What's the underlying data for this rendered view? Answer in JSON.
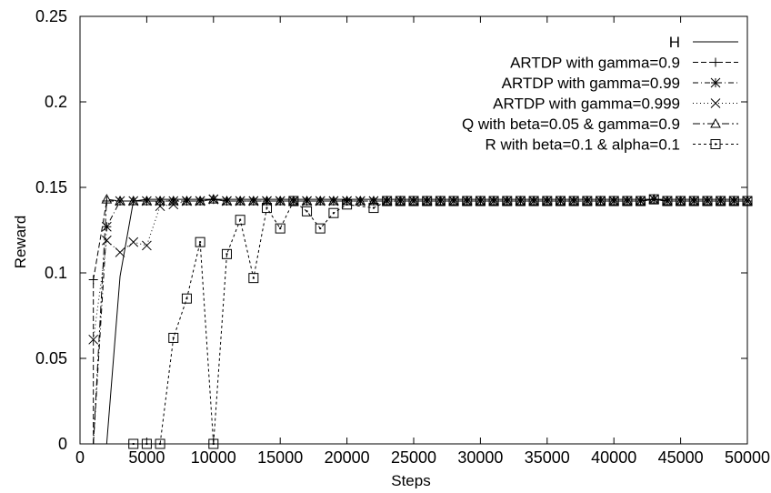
{
  "chart_data": {
    "type": "line",
    "title": "",
    "xlabel": "Steps",
    "ylabel": "Reward",
    "xlim": [
      0,
      50000
    ],
    "ylim": [
      0,
      0.25
    ],
    "xticks": [
      0,
      5000,
      10000,
      15000,
      20000,
      25000,
      30000,
      35000,
      40000,
      45000,
      50000
    ],
    "yticks": [
      0,
      0.05,
      0.1,
      0.15,
      0.2,
      0.25
    ],
    "xtick_labels": [
      "0",
      "5000",
      "10000",
      "15000",
      "20000",
      "25000",
      "30000",
      "35000",
      "40000",
      "45000",
      "50000"
    ],
    "ytick_labels": [
      "0",
      "0.05",
      "0.1",
      "0.15",
      "0.2",
      "0.25"
    ],
    "grid": false,
    "legend_position": "top-right",
    "series": [
      {
        "name": "H",
        "marker": "none",
        "dash": "solid",
        "points": [
          [
            2000,
            0
          ],
          [
            3000,
            0.098
          ],
          [
            4000,
            0.142
          ],
          [
            5000,
            0.143
          ],
          [
            50000,
            0.143
          ]
        ]
      },
      {
        "name": "ARTDP with gamma=0.9",
        "marker": "plus",
        "dash": "dashed",
        "points": [
          [
            1000,
            0
          ],
          [
            1000,
            0.096
          ],
          [
            2000,
            0.142
          ],
          [
            3000,
            0.142
          ],
          [
            4000,
            0.142
          ],
          [
            5000,
            0.142
          ],
          [
            6000,
            0.142
          ],
          [
            7000,
            0.142
          ],
          [
            8000,
            0.142
          ],
          [
            9000,
            0.142
          ],
          [
            10000,
            0.143
          ],
          [
            11000,
            0.142
          ],
          [
            12000,
            0.142
          ],
          [
            13000,
            0.142
          ],
          [
            14000,
            0.142
          ],
          [
            15000,
            0.142
          ],
          [
            16000,
            0.142
          ],
          [
            17000,
            0.142
          ],
          [
            18000,
            0.142
          ],
          [
            19000,
            0.142
          ],
          [
            20000,
            0.142
          ],
          [
            21000,
            0.142
          ],
          [
            22000,
            0.142
          ],
          [
            23000,
            0.142
          ],
          [
            24000,
            0.142
          ],
          [
            25000,
            0.142
          ],
          [
            26000,
            0.142
          ],
          [
            27000,
            0.142
          ],
          [
            28000,
            0.142
          ],
          [
            29000,
            0.142
          ],
          [
            30000,
            0.142
          ],
          [
            31000,
            0.142
          ],
          [
            32000,
            0.142
          ],
          [
            33000,
            0.142
          ],
          [
            34000,
            0.142
          ],
          [
            35000,
            0.142
          ],
          [
            36000,
            0.142
          ],
          [
            37000,
            0.142
          ],
          [
            38000,
            0.142
          ],
          [
            39000,
            0.142
          ],
          [
            40000,
            0.142
          ],
          [
            41000,
            0.142
          ],
          [
            42000,
            0.142
          ],
          [
            43000,
            0.143
          ],
          [
            44000,
            0.142
          ],
          [
            45000,
            0.142
          ],
          [
            46000,
            0.142
          ],
          [
            47000,
            0.142
          ],
          [
            48000,
            0.142
          ],
          [
            49000,
            0.142
          ],
          [
            50000,
            0.142
          ]
        ]
      },
      {
        "name": "ARTDP with gamma=0.99",
        "marker": "star",
        "dash": "dashdot",
        "points": [
          [
            1000,
            0
          ],
          [
            2000,
            0.127
          ],
          [
            3000,
            0.142
          ],
          [
            4000,
            0.142
          ],
          [
            5000,
            0.142
          ],
          [
            6000,
            0.142
          ],
          [
            7000,
            0.142
          ],
          [
            8000,
            0.142
          ],
          [
            9000,
            0.142
          ],
          [
            10000,
            0.143
          ],
          [
            11000,
            0.142
          ],
          [
            12000,
            0.142
          ],
          [
            13000,
            0.142
          ],
          [
            14000,
            0.142
          ],
          [
            15000,
            0.142
          ],
          [
            16000,
            0.142
          ],
          [
            17000,
            0.142
          ],
          [
            18000,
            0.142
          ],
          [
            19000,
            0.142
          ],
          [
            20000,
            0.142
          ],
          [
            21000,
            0.142
          ],
          [
            22000,
            0.142
          ],
          [
            23000,
            0.142
          ],
          [
            24000,
            0.142
          ],
          [
            25000,
            0.142
          ],
          [
            26000,
            0.142
          ],
          [
            27000,
            0.142
          ],
          [
            28000,
            0.142
          ],
          [
            29000,
            0.142
          ],
          [
            30000,
            0.142
          ],
          [
            31000,
            0.142
          ],
          [
            32000,
            0.142
          ],
          [
            33000,
            0.142
          ],
          [
            34000,
            0.142
          ],
          [
            35000,
            0.142
          ],
          [
            36000,
            0.142
          ],
          [
            37000,
            0.142
          ],
          [
            38000,
            0.142
          ],
          [
            39000,
            0.142
          ],
          [
            40000,
            0.142
          ],
          [
            41000,
            0.142
          ],
          [
            42000,
            0.142
          ],
          [
            43000,
            0.143
          ],
          [
            44000,
            0.142
          ],
          [
            45000,
            0.142
          ],
          [
            46000,
            0.142
          ],
          [
            47000,
            0.142
          ],
          [
            48000,
            0.142
          ],
          [
            49000,
            0.142
          ],
          [
            50000,
            0.142
          ]
        ]
      },
      {
        "name": "ARTDP with gamma=0.999",
        "marker": "cross",
        "dash": "dotted",
        "points": [
          [
            1000,
            0.061
          ],
          [
            2000,
            0.119
          ],
          [
            3000,
            0.112
          ],
          [
            4000,
            0.118
          ],
          [
            5000,
            0.116
          ],
          [
            6000,
            0.139
          ],
          [
            7000,
            0.14
          ],
          [
            8000,
            0.142
          ],
          [
            9000,
            0.142
          ],
          [
            10000,
            0.143
          ],
          [
            11000,
            0.142
          ],
          [
            12000,
            0.142
          ],
          [
            13000,
            0.142
          ],
          [
            14000,
            0.142
          ],
          [
            15000,
            0.142
          ],
          [
            16000,
            0.142
          ],
          [
            17000,
            0.142
          ],
          [
            18000,
            0.142
          ],
          [
            19000,
            0.142
          ],
          [
            20000,
            0.142
          ],
          [
            21000,
            0.142
          ],
          [
            22000,
            0.142
          ],
          [
            23000,
            0.142
          ],
          [
            24000,
            0.142
          ],
          [
            25000,
            0.142
          ],
          [
            26000,
            0.142
          ],
          [
            27000,
            0.142
          ],
          [
            28000,
            0.142
          ],
          [
            29000,
            0.142
          ],
          [
            30000,
            0.142
          ],
          [
            31000,
            0.142
          ],
          [
            32000,
            0.142
          ],
          [
            33000,
            0.142
          ],
          [
            34000,
            0.142
          ],
          [
            35000,
            0.142
          ],
          [
            36000,
            0.142
          ],
          [
            37000,
            0.142
          ],
          [
            38000,
            0.142
          ],
          [
            39000,
            0.142
          ],
          [
            40000,
            0.142
          ],
          [
            41000,
            0.142
          ],
          [
            42000,
            0.142
          ],
          [
            43000,
            0.143
          ],
          [
            44000,
            0.142
          ],
          [
            45000,
            0.142
          ],
          [
            46000,
            0.142
          ],
          [
            47000,
            0.142
          ],
          [
            48000,
            0.142
          ],
          [
            49000,
            0.142
          ],
          [
            50000,
            0.142
          ]
        ]
      },
      {
        "name": "Q with beta=0.05 & gamma=0.9",
        "marker": "triangle",
        "dash": "dashdot2",
        "points": [
          [
            1000,
            0
          ],
          [
            2000,
            0.143
          ],
          [
            3000,
            0.142
          ],
          [
            4000,
            0.142
          ],
          [
            5000,
            0.142
          ],
          [
            6000,
            0.142
          ],
          [
            7000,
            0.142
          ],
          [
            8000,
            0.142
          ],
          [
            9000,
            0.142
          ],
          [
            10000,
            0.143
          ],
          [
            11000,
            0.142
          ],
          [
            12000,
            0.142
          ],
          [
            13000,
            0.142
          ],
          [
            14000,
            0.142
          ],
          [
            15000,
            0.142
          ],
          [
            16000,
            0.142
          ],
          [
            17000,
            0.142
          ],
          [
            18000,
            0.142
          ],
          [
            19000,
            0.142
          ],
          [
            20000,
            0.142
          ],
          [
            21000,
            0.142
          ],
          [
            22000,
            0.142
          ],
          [
            23000,
            0.142
          ],
          [
            24000,
            0.142
          ],
          [
            25000,
            0.142
          ],
          [
            26000,
            0.142
          ],
          [
            27000,
            0.142
          ],
          [
            28000,
            0.142
          ],
          [
            29000,
            0.142
          ],
          [
            30000,
            0.142
          ],
          [
            31000,
            0.142
          ],
          [
            32000,
            0.142
          ],
          [
            33000,
            0.142
          ],
          [
            34000,
            0.142
          ],
          [
            35000,
            0.142
          ],
          [
            36000,
            0.142
          ],
          [
            37000,
            0.142
          ],
          [
            38000,
            0.142
          ],
          [
            39000,
            0.142
          ],
          [
            40000,
            0.142
          ],
          [
            41000,
            0.142
          ],
          [
            42000,
            0.142
          ],
          [
            43000,
            0.143
          ],
          [
            44000,
            0.142
          ],
          [
            45000,
            0.142
          ],
          [
            46000,
            0.142
          ],
          [
            47000,
            0.142
          ],
          [
            48000,
            0.142
          ],
          [
            49000,
            0.142
          ],
          [
            50000,
            0.142
          ]
        ]
      },
      {
        "name": "R with beta=0.1 & alpha=0.1",
        "marker": "square",
        "dash": "dashed-fine",
        "points": [
          [
            4000,
            0
          ],
          [
            5000,
            0
          ],
          [
            6000,
            0
          ],
          [
            7000,
            0.062
          ],
          [
            8000,
            0.085
          ],
          [
            9000,
            0.118
          ],
          [
            10000,
            0
          ],
          [
            11000,
            0.111
          ],
          [
            12000,
            0.131
          ],
          [
            13000,
            0.097
          ],
          [
            14000,
            0.138
          ],
          [
            15000,
            0.126
          ],
          [
            16000,
            0.142
          ],
          [
            17000,
            0.136
          ],
          [
            18000,
            0.126
          ],
          [
            19000,
            0.135
          ],
          [
            20000,
            0.14
          ],
          [
            22000,
            0.138
          ],
          [
            23000,
            0.142
          ],
          [
            24000,
            0.142
          ],
          [
            25000,
            0.142
          ],
          [
            26000,
            0.142
          ],
          [
            27000,
            0.142
          ],
          [
            28000,
            0.142
          ],
          [
            29000,
            0.142
          ],
          [
            30000,
            0.142
          ],
          [
            31000,
            0.142
          ],
          [
            32000,
            0.142
          ],
          [
            33000,
            0.142
          ],
          [
            34000,
            0.142
          ],
          [
            35000,
            0.142
          ],
          [
            36000,
            0.142
          ],
          [
            37000,
            0.142
          ],
          [
            38000,
            0.142
          ],
          [
            39000,
            0.142
          ],
          [
            40000,
            0.142
          ],
          [
            41000,
            0.142
          ],
          [
            42000,
            0.142
          ],
          [
            43000,
            0.143
          ],
          [
            44000,
            0.142
          ],
          [
            45000,
            0.142
          ],
          [
            46000,
            0.142
          ],
          [
            47000,
            0.142
          ],
          [
            48000,
            0.142
          ],
          [
            49000,
            0.142
          ],
          [
            50000,
            0.142
          ]
        ]
      }
    ]
  }
}
